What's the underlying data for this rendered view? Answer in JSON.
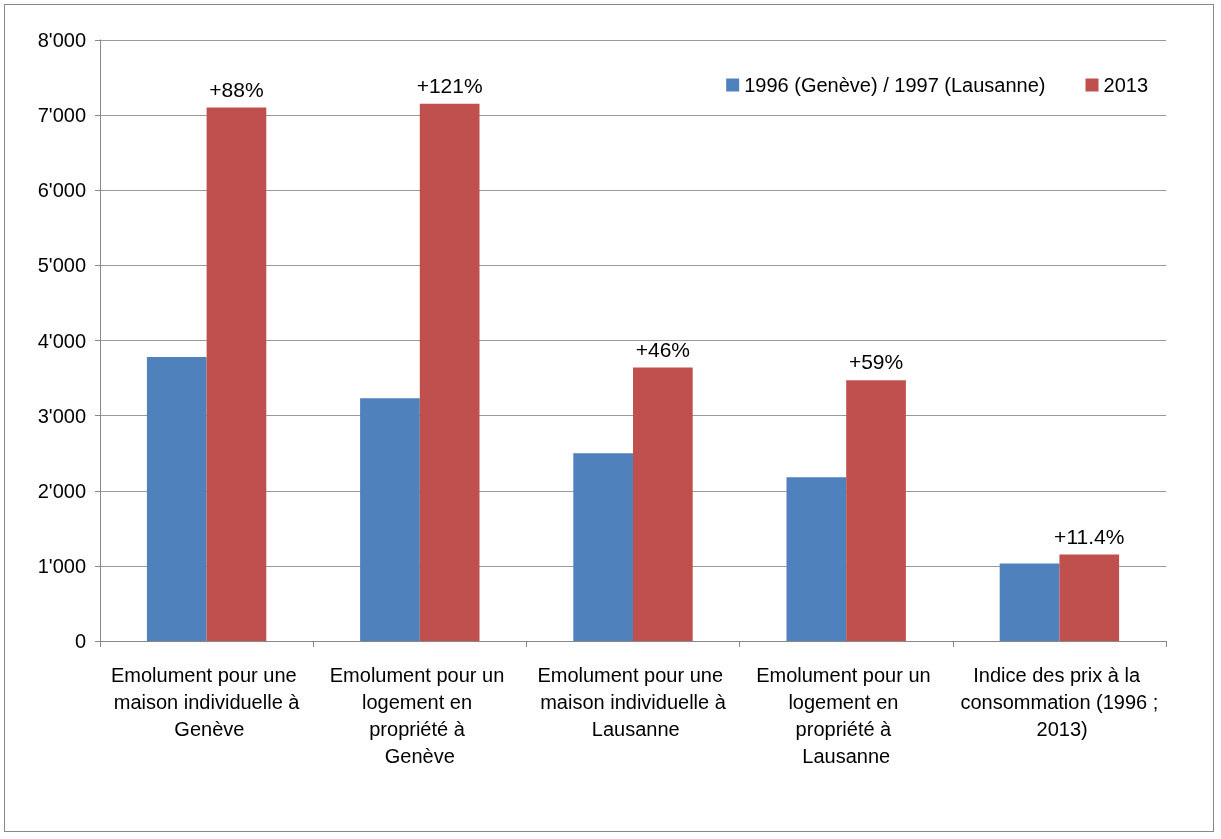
{
  "chart_data": {
    "type": "bar",
    "categories": [
      "Emolument pour une maison individuelle à Genève",
      "Emolument pour un logement en propriété à Genève",
      "Emolument pour une maison individuelle à Lausanne",
      "Emolument pour un logement en propriété à Lausanne",
      "Indice des prix à la consommation (1996 ; 2013)"
    ],
    "series": [
      {
        "name": "1996 (Genève) / 1997 (Lausanne)",
        "color": "#4f81bd",
        "values": [
          3780,
          3230,
          2500,
          2180,
          1030
        ]
      },
      {
        "name": "2013",
        "color": "#c0504d",
        "values": [
          7100,
          7150,
          3640,
          3470,
          1150
        ]
      }
    ],
    "annotations": [
      {
        "text": "+88%",
        "x": "Emolument pour une maison individuelle à Genève",
        "y": 7100
      },
      {
        "text": "+121%",
        "x": "Emolument pour un logement en propriété à Genève",
        "y": 7150
      },
      {
        "text": "+46%",
        "x": "Emolument pour une maison individuelle à Lausanne",
        "y": 3640
      },
      {
        "text": "+59%",
        "x": "Emolument pour un logement en propriété à Lausanne",
        "y": 3470
      },
      {
        "text": "+11.4%",
        "x": "Indice des prix à la consommation (1996 ; 2013)",
        "y": 1150
      }
    ],
    "ylim": [
      0,
      8000
    ],
    "yticks": [
      0,
      {
        "value": 1000,
        "label": "1'000"
      },
      {
        "value": 2000,
        "label": "2'000"
      },
      {
        "value": 3000,
        "label": "3'000"
      },
      {
        "value": 4000,
        "label": "4'000"
      },
      {
        "value": 5000,
        "label": "5'000"
      },
      {
        "value": 6000,
        "label": "6'000"
      },
      {
        "value": 7000,
        "label": "7'000"
      },
      {
        "value": 8000,
        "label": "8'000"
      }
    ],
    "grid": "y",
    "legend": "top right"
  }
}
